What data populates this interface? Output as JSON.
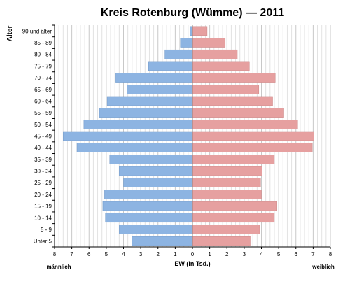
{
  "chart_data": {
    "type": "bar",
    "orientation": "horizontal",
    "layout": "population-pyramid",
    "title": "Kreis Rotenburg (Wümme) — 2011",
    "xlabel": "EW (in Tsd.)",
    "ylabel": "Alter",
    "xlim": [
      -8,
      8
    ],
    "xticks": [
      -8,
      -7,
      -6,
      -5,
      -4,
      -3,
      -2,
      -1,
      0,
      1,
      2,
      3,
      4,
      5,
      6,
      7,
      8
    ],
    "xtick_labels": [
      "8",
      "7",
      "6",
      "5",
      "4",
      "3",
      "2",
      "1",
      "0",
      "1",
      "2",
      "3",
      "4",
      "5",
      "6",
      "7",
      "8"
    ],
    "grid": true,
    "left_label": "männlich",
    "right_label": "weiblich",
    "categories": [
      "90 und älter",
      "85 - 89",
      "80 - 84",
      "75 - 79",
      "70 - 74",
      "65 - 69",
      "60 - 64",
      "55 - 59",
      "50 - 54",
      "45 - 49",
      "40 - 44",
      "35 - 39",
      "30 - 34",
      "25 - 29",
      "20 - 24",
      "15 - 19",
      "10 - 14",
      "5 - 9",
      "Unter 5"
    ],
    "series": [
      {
        "name": "männlich",
        "color": "#8db4e2",
        "values": [
          0.15,
          0.7,
          1.6,
          2.55,
          4.45,
          3.8,
          4.95,
          5.4,
          6.3,
          7.5,
          6.7,
          4.8,
          4.25,
          4.0,
          5.1,
          5.2,
          5.05,
          4.25,
          3.5
        ]
      },
      {
        "name": "weiblich",
        "color": "#e6a0a0",
        "values": [
          0.85,
          1.9,
          2.6,
          3.3,
          4.8,
          3.85,
          4.65,
          5.3,
          6.1,
          7.05,
          6.95,
          4.75,
          4.05,
          3.95,
          4.0,
          4.9,
          4.75,
          3.9,
          3.35
        ]
      }
    ]
  }
}
